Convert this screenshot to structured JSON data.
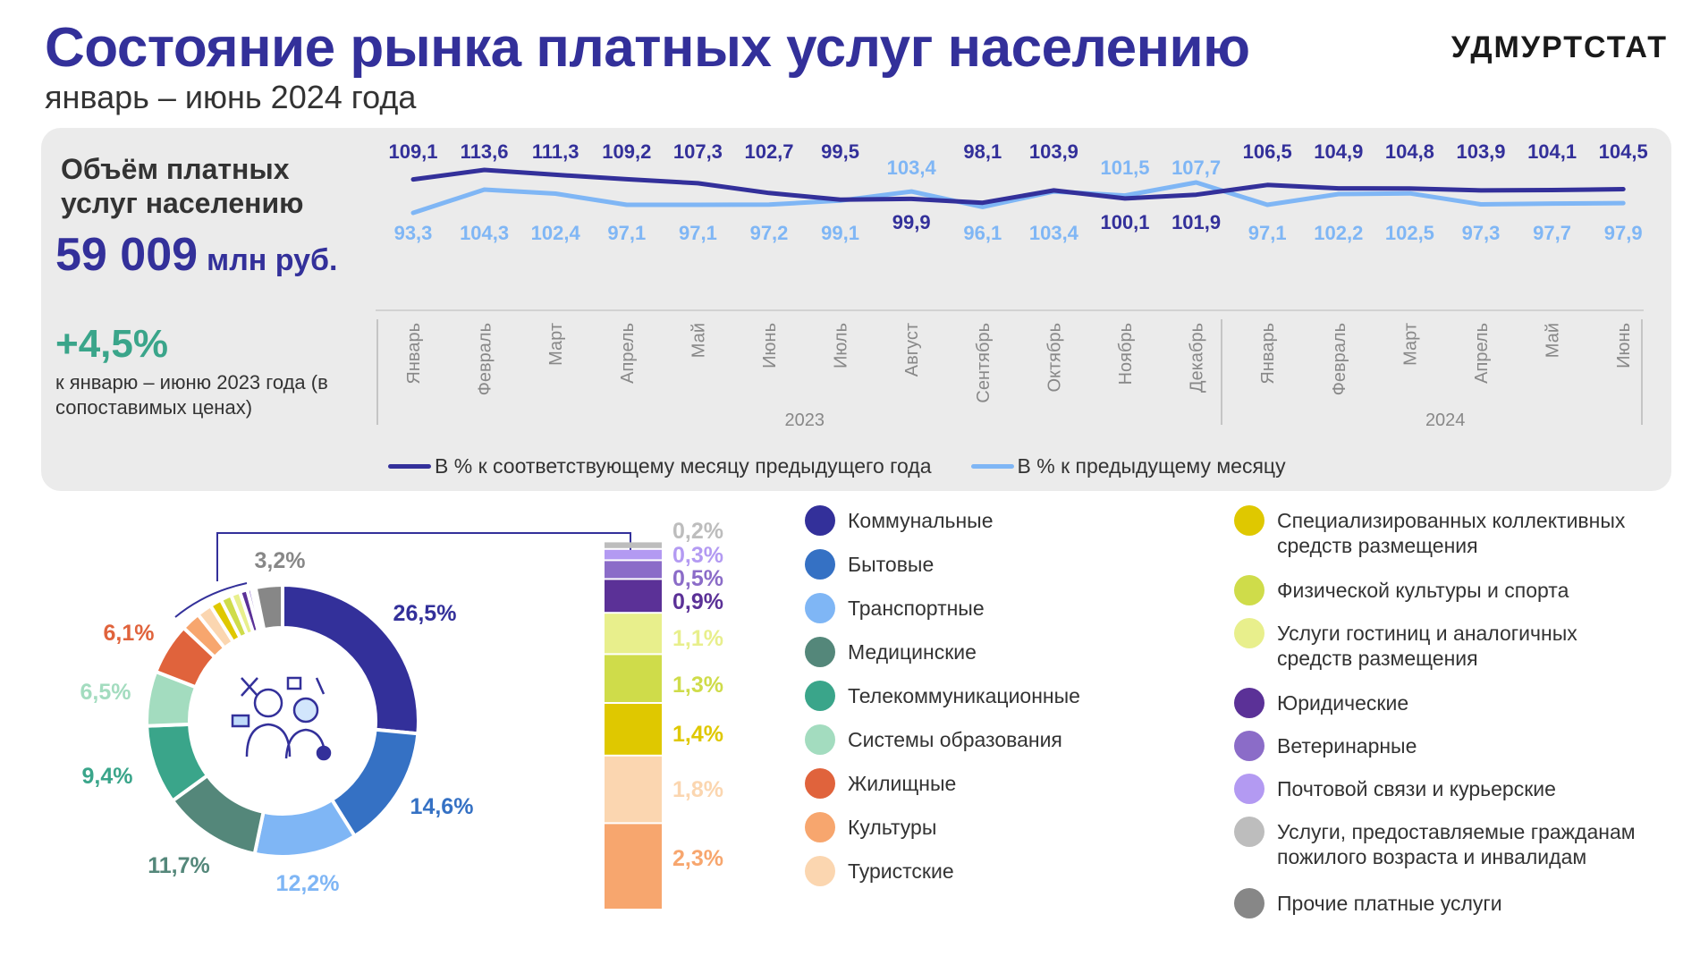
{
  "header": {
    "title": "Состояние рынка платных услуг населению",
    "subtitle": "январь – июнь 2024 года",
    "brand": "УДМУРТСТАТ"
  },
  "summary": {
    "volume_label": "Объём платных услуг населению",
    "volume_value": "59 009",
    "volume_unit": "млн руб.",
    "growth_value": "+4,5%",
    "growth_note": "к январю – июню 2023 года (в сопоставимых ценах)"
  },
  "colors": {
    "dark_line": "#33309a",
    "light_line": "#7fb6f5",
    "panel": "#ebebeb"
  },
  "chart_data": [
    {
      "type": "line",
      "categories": [
        "Январь",
        "Февраль",
        "Март",
        "Апрель",
        "Май",
        "Июнь",
        "Июль",
        "Август",
        "Сентябрь",
        "Октябрь",
        "Ноябрь",
        "Декабрь",
        "Январь",
        "Февраль",
        "Март",
        "Апрель",
        "Май",
        "Июнь"
      ],
      "year_groups": [
        {
          "label": "2023",
          "start": 0,
          "end": 11
        },
        {
          "label": "2024",
          "start": 12,
          "end": 17
        }
      ],
      "series": [
        {
          "name": "В % к соответствующему месяцу предыдущего года",
          "values": [
            109.1,
            113.6,
            111.3,
            109.2,
            107.3,
            102.7,
            99.5,
            99.9,
            98.1,
            103.9,
            100.1,
            101.9,
            106.5,
            104.9,
            104.8,
            103.9,
            104.1,
            104.5
          ],
          "labels": [
            "109,1",
            "113,6",
            "111,3",
            "109,2",
            "107,3",
            "102,7",
            "99,5",
            "99,9",
            "98,1",
            "103,9",
            "100,1",
            "101,9",
            "106,5",
            "104,9",
            "104,8",
            "103,9",
            "104,1",
            "104,5"
          ],
          "color": "#33309a"
        },
        {
          "name": "В % к предыдущему месяцу",
          "values": [
            93.3,
            104.3,
            102.4,
            97.1,
            97.1,
            97.2,
            99.1,
            103.4,
            96.1,
            103.4,
            101.5,
            107.7,
            97.1,
            102.2,
            102.5,
            97.3,
            97.7,
            97.9
          ],
          "labels": [
            "93,3",
            "104,3",
            "102,4",
            "97,1",
            "97,1",
            "97,2",
            "99,1",
            "103,4",
            "96,1",
            "103,4",
            "101,5",
            "107,7",
            "97,1",
            "102,2",
            "102,5",
            "97,3",
            "97,7",
            "97,9"
          ],
          "color": "#7fb6f5"
        }
      ]
    },
    {
      "type": "pie",
      "slices": [
        {
          "name": "Коммунальные",
          "value": 26.5,
          "label": "26,5%",
          "color": "#33309a"
        },
        {
          "name": "Бытовые",
          "value": 14.6,
          "label": "14,6%",
          "color": "#3571c4"
        },
        {
          "name": "Транспортные",
          "value": 12.2,
          "label": "12,2%",
          "color": "#7fb6f5"
        },
        {
          "name": "Медицинские",
          "value": 11.7,
          "label": "11,7%",
          "color": "#54877a"
        },
        {
          "name": "Телекоммуникационные",
          "value": 9.4,
          "label": "9,4%",
          "color": "#3aa58a"
        },
        {
          "name": "Системы образования",
          "value": 6.5,
          "label": "6,5%",
          "color": "#a3dcbf"
        },
        {
          "name": "Жилищные",
          "value": 6.1,
          "label": "6,1%",
          "color": "#e0633c"
        },
        {
          "name": "Культуры",
          "value": 2.3,
          "label": "2,3%",
          "color": "#f7a66e"
        },
        {
          "name": "Туристские",
          "value": 1.8,
          "label": "1,8%",
          "color": "#fbd6b0"
        },
        {
          "name": "Специализированных коллективных средств размещения",
          "value": 1.4,
          "label": "1,4%",
          "color": "#dfc800"
        },
        {
          "name": "Физической культуры и спорта",
          "value": 1.3,
          "label": "1,3%",
          "color": "#cfdc4a"
        },
        {
          "name": "Услуги гостиниц и аналогичных средств размещения",
          "value": 1.1,
          "label": "1,1%",
          "color": "#e8ef8c"
        },
        {
          "name": "Юридические",
          "value": 0.9,
          "label": "0,9%",
          "color": "#5b3197"
        },
        {
          "name": "Ветеринарные",
          "value": 0.5,
          "label": "0,5%",
          "color": "#8b6cc8"
        },
        {
          "name": "Почтовой связи и курьерские",
          "value": 0.3,
          "label": "0,3%",
          "color": "#b39af2"
        },
        {
          "name": "Услуги, предоставляемые гражданам пожилого возраста и инвалидам",
          "value": 0.2,
          "label": "0,2%",
          "color": "#bdbdbd"
        },
        {
          "name": "Прочие платные услуги",
          "value": 3.2,
          "label": "3,2%",
          "color": "#878787"
        }
      ]
    }
  ]
}
